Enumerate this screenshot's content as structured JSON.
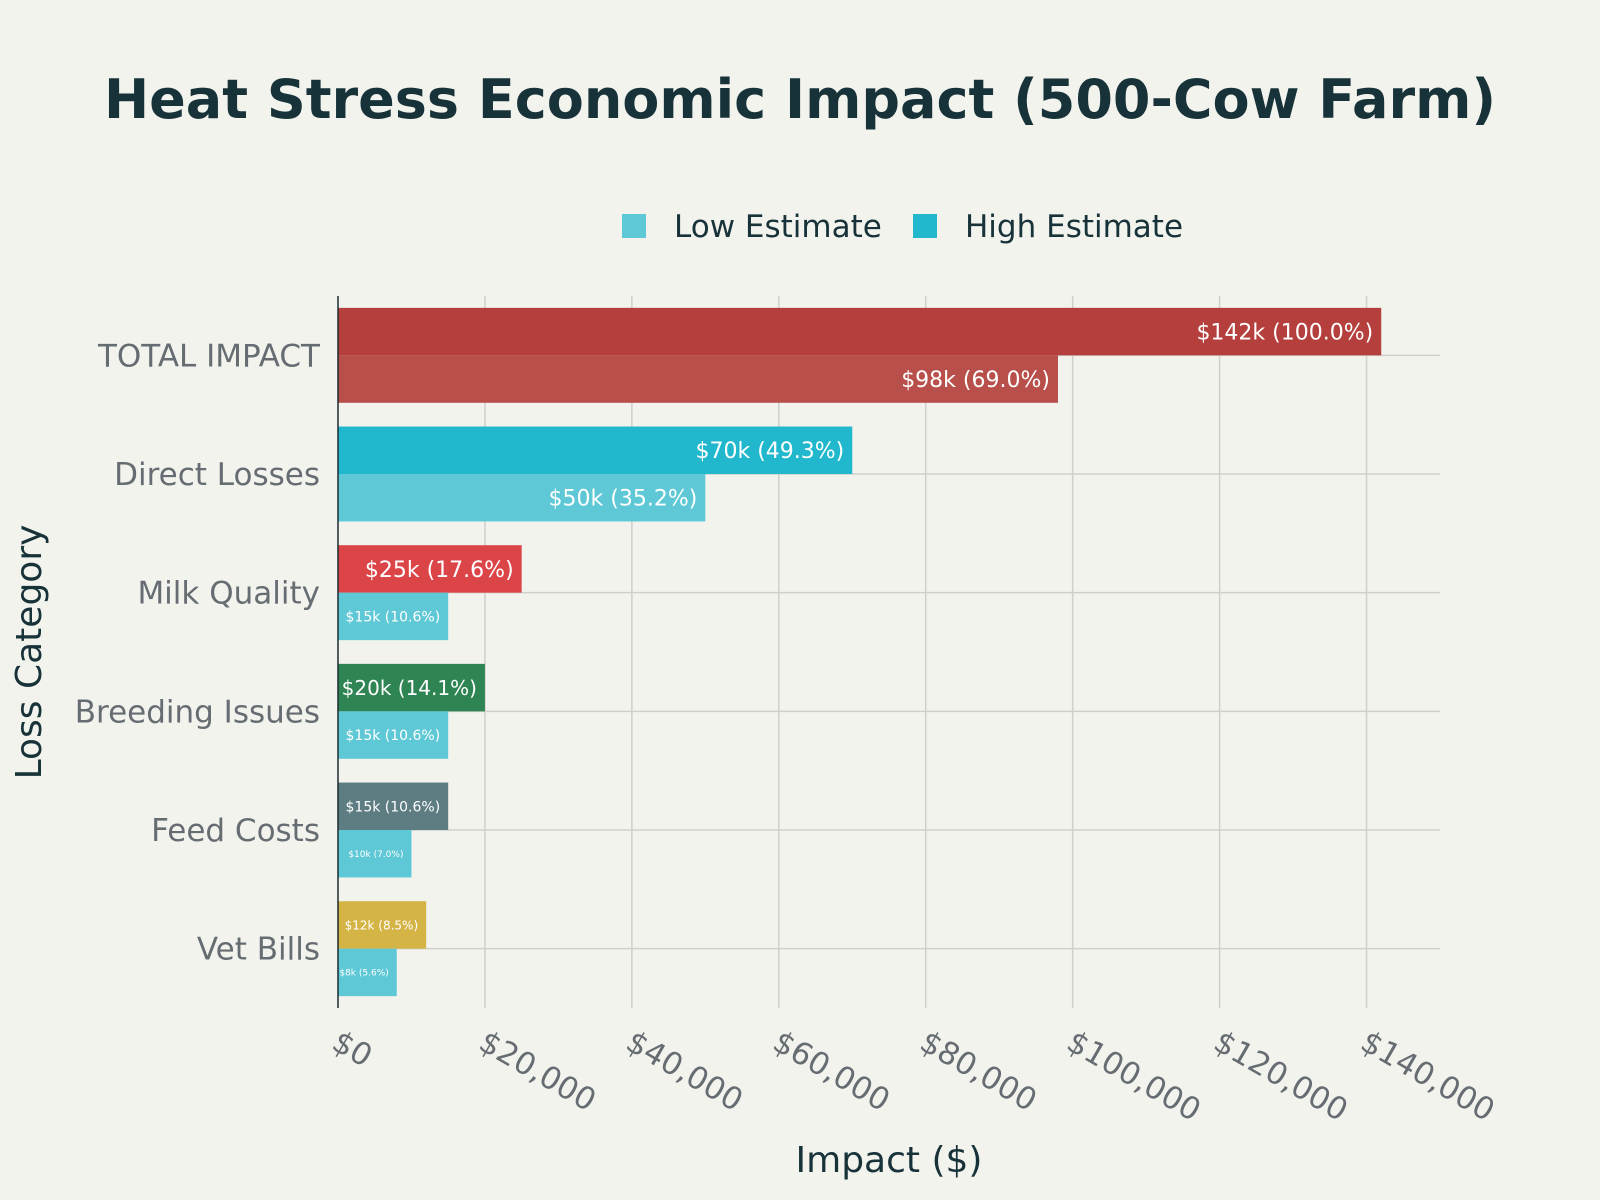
{
  "chart_data": {
    "type": "bar",
    "orientation": "horizontal",
    "title": "Heat Stress Economic Impact (500-Cow Farm)",
    "xlabel": "Impact ($)",
    "ylabel": "Loss Category",
    "xlim": [
      0,
      150000
    ],
    "xticks": [
      0,
      20000,
      40000,
      60000,
      80000,
      100000,
      120000,
      140000
    ],
    "xtick_labels": [
      "$0",
      "$20,000",
      "$40,000",
      "$60,000",
      "$80,000",
      "$100,000",
      "$120,000",
      "$140,000"
    ],
    "grid": true,
    "legend": {
      "placement": "top-center",
      "entries": [
        {
          "name": "Low Estimate",
          "color": "#5ec8d6"
        },
        {
          "name": "High Estimate",
          "color": "#21b8cd"
        }
      ]
    },
    "categories": [
      "TOTAL IMPACT",
      "Direct Losses",
      "Milk Quality",
      "Breeding Issues",
      "Feed Costs",
      "Vet Bills"
    ],
    "series": [
      {
        "name": "High Estimate",
        "values": [
          142000,
          70000,
          25000,
          20000,
          15000,
          12000
        ],
        "labels": [
          "$142k (100.0%)",
          "$70k (49.3%)",
          "$25k (17.6%)",
          "$20k (14.1%)",
          "$15k (10.6%)",
          "$12k (8.5%)"
        ],
        "colors": [
          "#b53f3d",
          "#21b8cd",
          "#dc4548",
          "#2e8553",
          "#5e7d83",
          "#d4b445"
        ]
      },
      {
        "name": "Low Estimate",
        "values": [
          98000,
          50000,
          15000,
          15000,
          10000,
          8000
        ],
        "labels": [
          "$98k (69.0%)",
          "$50k (35.2%)",
          "$15k (10.6%)",
          "$15k (10.6%)",
          "$10k (7.0%)",
          "$8k (5.6%)"
        ],
        "colors": [
          "#b84f4b",
          "#5ec8d6",
          "#5ec8d6",
          "#5ec8d6",
          "#5ec8d6",
          "#5ec8d6"
        ]
      }
    ]
  }
}
